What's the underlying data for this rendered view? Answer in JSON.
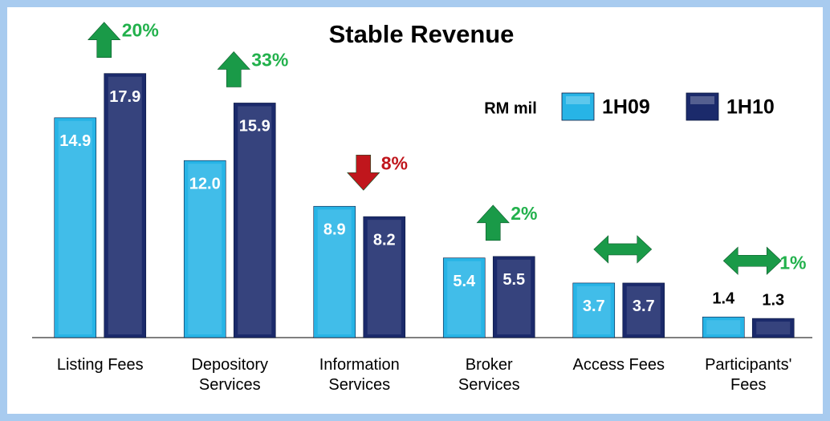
{
  "chart_data": {
    "type": "bar",
    "title": "Stable Revenue",
    "unit_label": "RM mil",
    "categories": [
      "Listing Fees",
      "Depository Services",
      "Information Services",
      "Broker Services",
      "Access Fees",
      "Participants' Fees"
    ],
    "series": [
      {
        "name": "1H09",
        "color": "#27b4e6",
        "values": [
          14.9,
          12,
          8.9,
          5.4,
          3.7,
          1.4
        ],
        "value_labels": [
          "14.9",
          "12.0",
          "8.9",
          "5.4",
          "3.7",
          "1.4"
        ]
      },
      {
        "name": "1H10",
        "color": "#1b2a6b",
        "values": [
          17.9,
          15.9,
          8.2,
          5.5,
          3.7,
          1.3
        ],
        "value_labels": [
          "17.9",
          "15.9",
          "8.2",
          "5.5",
          "3.7",
          "1.3"
        ]
      }
    ],
    "changes": [
      {
        "label": "20%",
        "direction": "up"
      },
      {
        "label": "33%",
        "direction": "up"
      },
      {
        "label": "8%",
        "direction": "down"
      },
      {
        "label": "2%",
        "direction": "up"
      },
      {
        "direction": "both"
      },
      {
        "label": "1%",
        "direction": "both"
      }
    ],
    "ylim": [
      0,
      20
    ]
  }
}
